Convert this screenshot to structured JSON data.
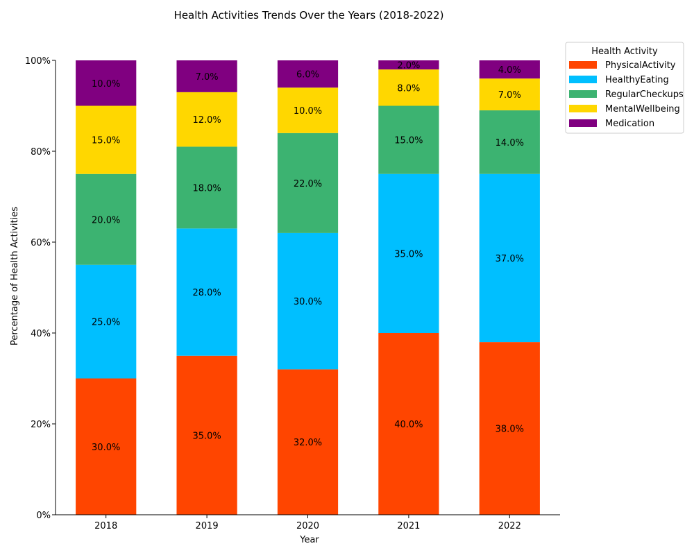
{
  "chart_data": {
    "type": "bar",
    "stacked": true,
    "title": "Health Activities Trends Over the Years (2018-2022)",
    "xlabel": "Year",
    "ylabel": "Percentage of Health Activities",
    "categories": [
      "2018",
      "2019",
      "2020",
      "2021",
      "2022"
    ],
    "ylim": [
      0,
      100
    ],
    "yticks": [
      "0%",
      "20%",
      "40%",
      "60%",
      "80%",
      "100%"
    ],
    "legend_title": "Health Activity",
    "legend_position": "top-right outside",
    "series": [
      {
        "name": "PhysicalActivity",
        "color": "#ff4500",
        "values": [
          30,
          35,
          32,
          40,
          38
        ],
        "labels": [
          "30.0%",
          "35.0%",
          "32.0%",
          "40.0%",
          "38.0%"
        ]
      },
      {
        "name": "HealthyEating",
        "color": "#00bfff",
        "values": [
          25,
          28,
          30,
          35,
          37
        ],
        "labels": [
          "25.0%",
          "28.0%",
          "30.0%",
          "35.0%",
          "37.0%"
        ]
      },
      {
        "name": "RegularCheckups",
        "color": "#3cb371",
        "values": [
          20,
          18,
          22,
          15,
          14
        ],
        "labels": [
          "20.0%",
          "18.0%",
          "22.0%",
          "15.0%",
          "14.0%"
        ]
      },
      {
        "name": "MentalWellbeing",
        "color": "#ffd700",
        "values": [
          15,
          12,
          10,
          8,
          7
        ],
        "labels": [
          "15.0%",
          "12.0%",
          "10.0%",
          "8.0%",
          "7.0%"
        ]
      },
      {
        "name": "Medication",
        "color": "#800080",
        "values": [
          10,
          7,
          6,
          2,
          4
        ],
        "labels": [
          "10.0%",
          "7.0%",
          "6.0%",
          "2.0%",
          "4.0%"
        ]
      }
    ]
  }
}
